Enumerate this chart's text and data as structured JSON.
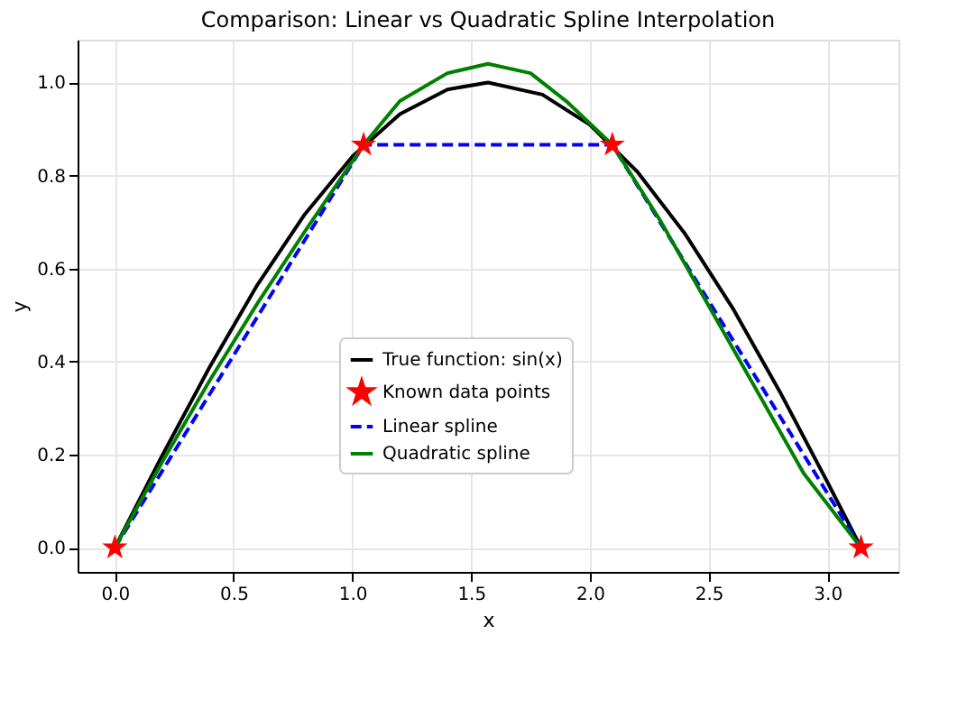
{
  "chart_data": {
    "type": "line",
    "title": "Comparison: Linear vs Quadratic Spline Interpolation",
    "xlabel": "x",
    "ylabel": "y",
    "xlim": [
      -0.157,
      3.299
    ],
    "ylim": [
      -0.052,
      1.092
    ],
    "xticks": [
      {
        "value": 0,
        "label": "0.0"
      },
      0.5,
      {
        "value": 1,
        "label": "1.0"
      },
      1.5,
      {
        "value": 2,
        "label": "2.0"
      },
      2.5,
      {
        "value": 3,
        "label": "3.0"
      }
    ],
    "yticks": [
      {
        "value": 0,
        "label": "0.0"
      },
      0.2,
      0.4,
      0.6,
      0.8,
      {
        "value": 1,
        "label": "1.0"
      }
    ],
    "grid": true,
    "legend": "bottom",
    "series": [
      {
        "name": "True function: sin(x)",
        "color": "#000000",
        "line_style": "solid",
        "x": [
          0,
          0.2,
          0.4,
          0.6,
          0.8,
          1.0,
          1.2,
          1.4,
          1.571,
          1.8,
          2.0,
          2.2,
          2.4,
          2.6,
          2.8,
          3.0,
          3.1416
        ],
        "values": [
          0,
          0.199,
          0.389,
          0.565,
          0.717,
          0.841,
          0.932,
          0.985,
          1.0,
          0.974,
          0.909,
          0.808,
          0.675,
          0.516,
          0.335,
          0.141,
          0
        ]
      },
      {
        "name": "Known data points",
        "type": "scatter",
        "marker": "star",
        "color": "#ff0000",
        "x": [
          0,
          1.0472,
          2.0944,
          3.1416
        ],
        "values": [
          0,
          0.866,
          0.866,
          0
        ]
      },
      {
        "name": "Linear spline",
        "color": "#0000ff",
        "line_style": "dashed",
        "x": [
          0,
          1.0472,
          2.0944,
          3.1416
        ],
        "values": [
          0,
          0.866,
          0.866,
          0
        ]
      },
      {
        "name": "Quadratic spline",
        "color": "#008000",
        "line_style": "solid",
        "x": [
          0,
          0.2,
          0.4,
          0.6,
          0.8,
          1.0472,
          1.2,
          1.4,
          1.571,
          1.75,
          1.9,
          2.0944,
          2.3,
          2.5,
          2.7,
          2.9,
          3.1416
        ],
        "values": [
          0,
          0.185,
          0.36,
          0.525,
          0.68,
          0.866,
          0.96,
          1.02,
          1.04,
          1.02,
          0.96,
          0.866,
          0.7,
          0.52,
          0.34,
          0.16,
          0
        ]
      }
    ]
  }
}
